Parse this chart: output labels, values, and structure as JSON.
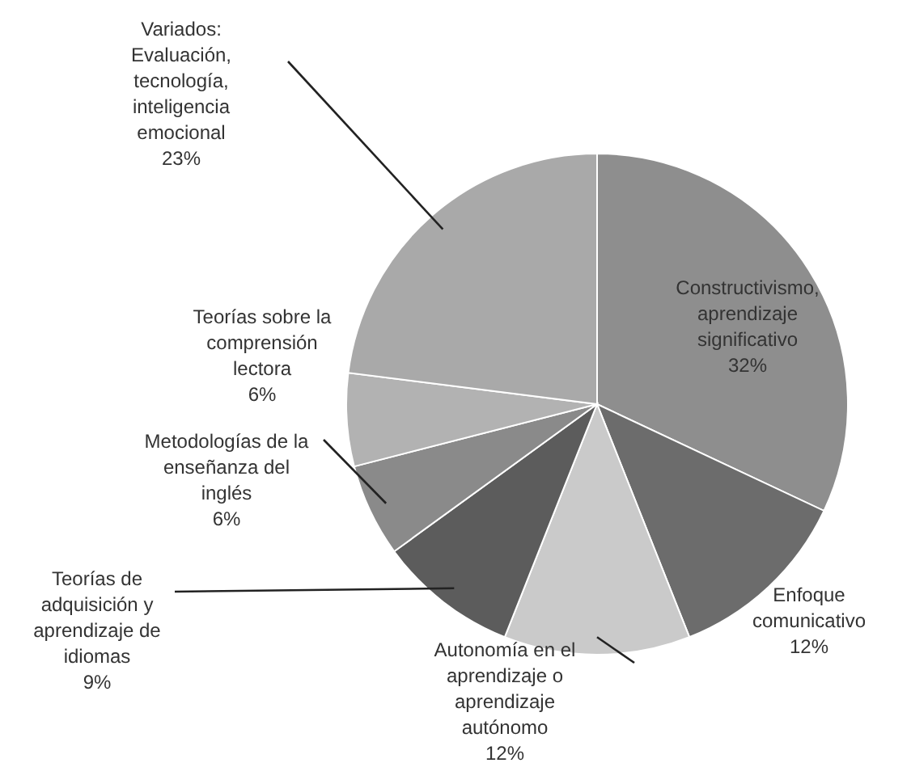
{
  "chart_data": {
    "type": "pie",
    "categories": [
      "Constructivismo, aprendizaje significativo",
      "Enfoque comunicativo",
      "Autonomía en el aprendizaje o aprendizaje autónomo",
      "Teorías de adquisición y aprendizaje de idiomas",
      "Metodologías de la enseñanza del inglés",
      "Teorías sobre la comprensión lectora",
      "Variados: Evaluación, tecnología, inteligencia emocional"
    ],
    "values": [
      32,
      12,
      12,
      9,
      6,
      6,
      23
    ],
    "value_labels": [
      "32%",
      "12%",
      "12%",
      "9%",
      "6%",
      "6%",
      "23%"
    ],
    "colors": [
      "#8e8e8e",
      "#6c6c6c",
      "#cacaca",
      "#5c5c5c",
      "#8a8a8a",
      "#b2b2b2",
      "#a9a9a9"
    ]
  }
}
